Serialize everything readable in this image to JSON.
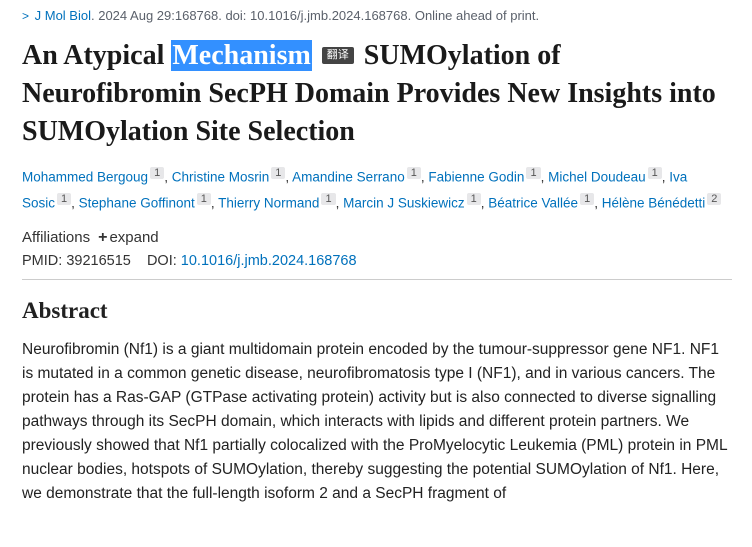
{
  "breadcrumb": {
    "journal": "J Mol Biol",
    "citation": ". 2024 Aug 29:168768. doi: 10.1016/j.jmb.2024.168768. Online ahead of print."
  },
  "title": {
    "pre": "An Atypical ",
    "highlighted": "Mechanism",
    "badge": "翻译",
    "post1": "UMOylation of Neurofibromin SecPH Domain Provides New Insights into SUMOylation Site Selection"
  },
  "authors": [
    {
      "name": "Mohammed Bergoug",
      "aff": "1"
    },
    {
      "name": "Christine Mosrin",
      "aff": "1"
    },
    {
      "name": "Amandine Serrano",
      "aff": "1"
    },
    {
      "name": "Fabienne Godin",
      "aff": "1"
    },
    {
      "name": "Michel Doudeau",
      "aff": "1"
    },
    {
      "name": "Iva Sosic",
      "aff": "1"
    },
    {
      "name": "Stephane Goffinont",
      "aff": "1"
    },
    {
      "name": "Thierry Normand",
      "aff": "1"
    },
    {
      "name": "Marcin J Suskiewicz",
      "aff": "1"
    },
    {
      "name": "Béatrice Vallée",
      "aff": "1"
    },
    {
      "name": "Hélène Bénédetti",
      "aff": "2"
    }
  ],
  "affiliations": {
    "label": "Affiliations",
    "expand_glyph": "+",
    "expand_label": "expand"
  },
  "ids": {
    "pmid_label": "PMID:",
    "pmid": "39216515",
    "doi_label": "DOI:",
    "doi": "10.1016/j.jmb.2024.168768"
  },
  "abstract": {
    "heading": "Abstract",
    "body": "Neurofibromin (Nf1) is a giant multidomain protein encoded by the tumour-suppressor gene NF1. NF1 is mutated in a common genetic disease, neurofibromatosis type I (NF1), and in various cancers. The protein has a Ras-GAP (GTPase activating protein) activity but is also connected to diverse signalling pathways through its SecPH domain, which interacts with lipids and different protein partners. We previously showed that Nf1 partially colocalized with the ProMyelocytic Leukemia (PML) protein in PML nuclear bodies, hotspots of SUMOylation, thereby suggesting the potential SUMOylation of Nf1. Here, we demonstrate that the full-length isoform 2 and a SecPH fragment of"
  }
}
